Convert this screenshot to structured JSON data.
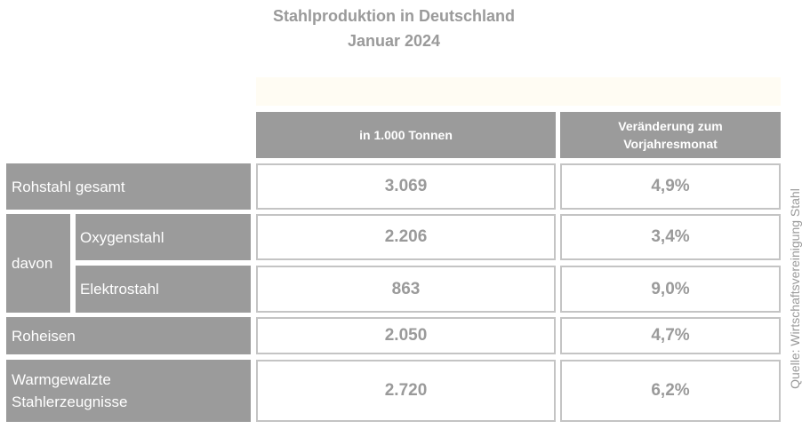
{
  "chart_data": {
    "type": "table",
    "title": "Stahlproduktion in Deutschland",
    "subtitle": "Januar 2024",
    "columns": [
      "in 1.000 Tonnen",
      "Veränderung zum Vorjahresmonat"
    ],
    "group_label": "davon",
    "rows": [
      {
        "label": "Rohstahl gesamt",
        "value": "3.069",
        "change": "4,9%"
      },
      {
        "label": "Oxygenstahl",
        "value": "2.206",
        "change": "3,4%"
      },
      {
        "label": "Elektrostahl",
        "value": "863",
        "change": "9,0%"
      },
      {
        "label": "Roheisen",
        "value": "2.050",
        "change": "4,7%"
      },
      {
        "label": "Warmgewalzte Stahlerzeugnisse",
        "value": "2.720",
        "change": "6,2%"
      }
    ],
    "source": "Quelle: Wirtschaftsvereinigung Stahl"
  },
  "colors": {
    "header_bg": "#9b9b9b",
    "text_gray": "#9a9a9a",
    "cell_border": "#c4c4c4"
  }
}
